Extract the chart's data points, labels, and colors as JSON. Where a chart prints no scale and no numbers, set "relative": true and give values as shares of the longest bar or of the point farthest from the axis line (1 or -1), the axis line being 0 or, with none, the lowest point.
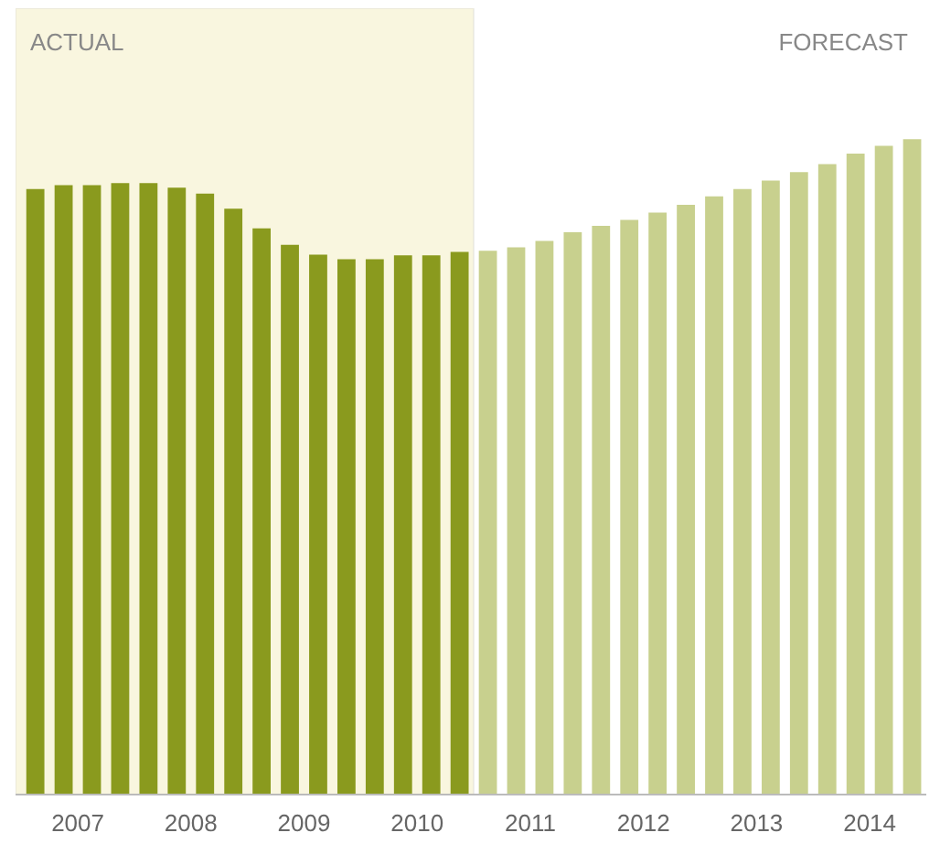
{
  "chart_data": {
    "type": "bar",
    "relative": true,
    "xlim": [
      2006.95,
      2015
    ],
    "xticks": [
      {
        "value": 2007.5,
        "label": "2007"
      },
      {
        "value": 2008.5,
        "label": "2008"
      },
      {
        "value": 2009.5,
        "label": "2009"
      },
      {
        "value": 2010.5,
        "label": "2010"
      },
      {
        "value": 2011.5,
        "label": "2011"
      },
      {
        "value": 2012.5,
        "label": "2012"
      },
      {
        "value": 2013.5,
        "label": "2013"
      },
      {
        "value": 2014.5,
        "label": "2014"
      }
    ],
    "series": [
      {
        "color": "#8a9a1e",
        "x": [
          2007.125,
          2007.375,
          2007.625,
          2007.875,
          2008.125,
          2008.375,
          2008.625,
          2008.875,
          2009.125,
          2009.375,
          2009.625,
          2009.875,
          2010.125,
          2010.375,
          2010.625,
          2010.875
        ],
        "values": [
          0.924,
          0.93,
          0.93,
          0.933,
          0.933,
          0.926,
          0.917,
          0.894,
          0.864,
          0.839,
          0.824,
          0.817,
          0.817,
          0.823,
          0.823,
          0.828
        ]
      },
      {
        "color": "#c8d08e",
        "x": [
          2011.125,
          2011.375,
          2011.625,
          2011.875,
          2012.125,
          2012.375,
          2012.625,
          2012.875,
          2013.125,
          2013.375,
          2013.625,
          2013.875,
          2014.125,
          2014.375,
          2014.625,
          2014.875
        ],
        "values": [
          0.83,
          0.835,
          0.845,
          0.858,
          0.868,
          0.877,
          0.888,
          0.9,
          0.913,
          0.924,
          0.937,
          0.95,
          0.962,
          0.978,
          0.99,
          1.0
        ]
      }
    ],
    "bands": [
      {
        "axis": "x",
        "from": 2006.95,
        "to": 2011,
        "label": "ACTUAL",
        "color": "#f9f6df"
      }
    ],
    "annotations": [
      "FORECAST"
    ]
  }
}
